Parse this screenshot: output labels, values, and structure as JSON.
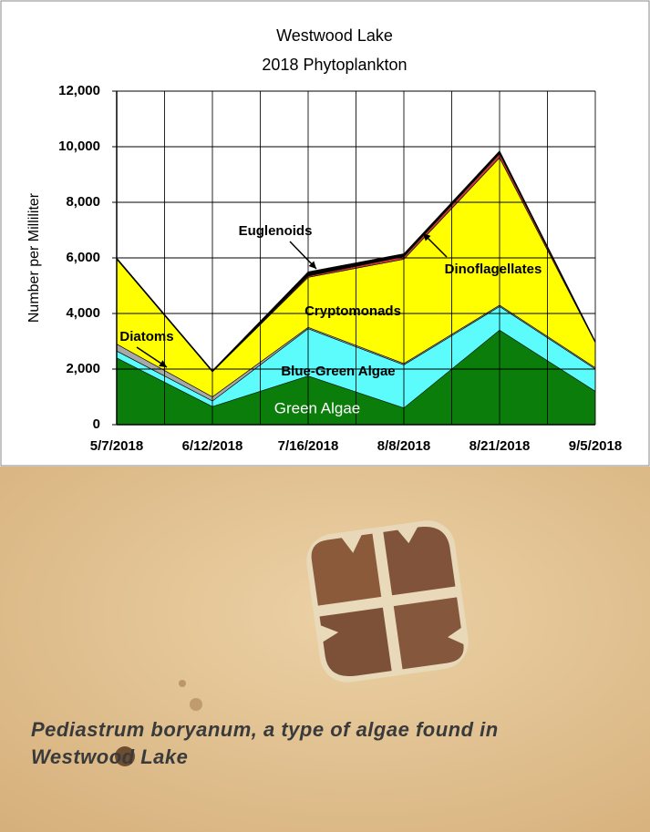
{
  "chart_data": {
    "type": "stacked_area",
    "title": "Westwood Lake",
    "subtitle": "2018 Phytoplankton",
    "y_label": "Number per Milliliter",
    "categories": [
      "5/7/2018",
      "6/12/2018",
      "7/16/2018",
      "8/8/2018",
      "8/21/2018",
      "9/5/2018"
    ],
    "series": [
      {
        "name": "Green Algae",
        "color": "#0b7d0b",
        "values": [
          2400,
          650,
          1750,
          600,
          3400,
          1200
        ]
      },
      {
        "name": "Blue-Green Algae",
        "color": "#5cfcfc",
        "values": [
          250,
          200,
          1700,
          1550,
          850,
          800
        ]
      },
      {
        "name": "Diatoms",
        "color": "#a8a8a8",
        "values": [
          250,
          150,
          50,
          50,
          50,
          50
        ]
      },
      {
        "name": "Cryptomonads",
        "color": "#ffff00",
        "values": [
          3050,
          900,
          1800,
          3750,
          5300,
          900
        ]
      },
      {
        "name": "Dinoflagellates",
        "color": "#c83a3a",
        "values": [
          20,
          20,
          50,
          100,
          150,
          20
        ]
      },
      {
        "name": "Euglenoids",
        "color": "#000000",
        "values": [
          30,
          30,
          150,
          100,
          100,
          30
        ]
      }
    ],
    "ylim": [
      0,
      12000
    ],
    "yticks": [
      0,
      {
        "value": 2000,
        "label": "2,000"
      },
      {
        "value": 4000,
        "label": "4,000"
      },
      {
        "value": 6000,
        "label": "6,000"
      },
      {
        "value": 8000,
        "label": "8,000"
      },
      {
        "value": 10000,
        "label": "10,000"
      },
      {
        "value": 12000,
        "label": "12,000"
      }
    ],
    "grid": true
  },
  "caption": "Pediastrum boryanum, a type of algae found in Westwood Lake"
}
